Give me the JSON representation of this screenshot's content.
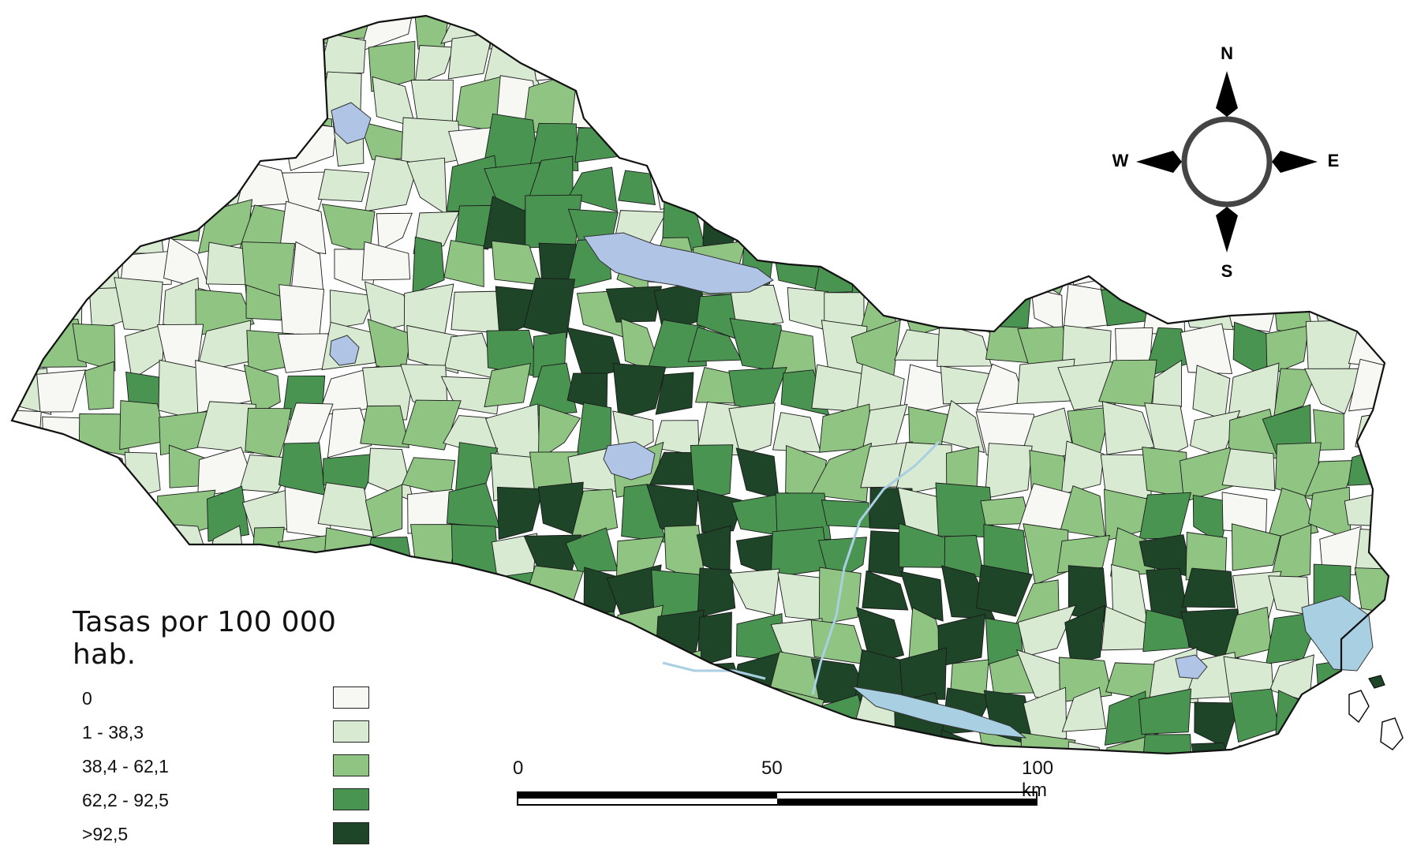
{
  "legend": {
    "title": "Tasas por 100 000 hab.",
    "classes": [
      {
        "label": "0",
        "color": "#f7f8f3"
      },
      {
        "label": "1 - 38,3",
        "color": "#d8ead1"
      },
      {
        "label": "38,4 - 62,1",
        "color": "#90c483"
      },
      {
        "label": "62,2 - 92,5",
        "color": "#4a9452"
      },
      {
        "label": ">92,5",
        "color": "#1e4528"
      }
    ]
  },
  "scale_bar": {
    "labels": [
      "0",
      "50",
      "100 km"
    ]
  },
  "compass": {
    "north": "N",
    "south": "S",
    "east": "E",
    "west": "W"
  },
  "colors": {
    "water": "#b0c4e6",
    "river": "#a9cfe3",
    "border": "#1a1a1a"
  }
}
